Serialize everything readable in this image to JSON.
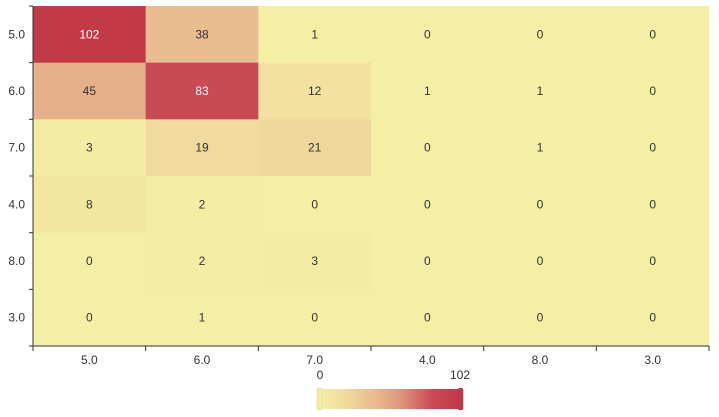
{
  "chart_data": {
    "type": "heatmap",
    "title": "",
    "xlabel": "",
    "ylabel": "",
    "x_categories": [
      "5.0",
      "6.0",
      "7.0",
      "4.0",
      "8.0",
      "3.0"
    ],
    "y_categories": [
      "5.0",
      "6.0",
      "7.0",
      "4.0",
      "8.0",
      "3.0"
    ],
    "values": [
      [
        102,
        38,
        1,
        0,
        0,
        0
      ],
      [
        45,
        83,
        12,
        1,
        1,
        0
      ],
      [
        3,
        19,
        21,
        0,
        1,
        0
      ],
      [
        8,
        2,
        0,
        0,
        0,
        0
      ],
      [
        0,
        2,
        3,
        0,
        0,
        0
      ],
      [
        0,
        1,
        0,
        0,
        0,
        0
      ]
    ],
    "visual_map": {
      "min": 0,
      "max": 102,
      "min_label": "0",
      "max_label": "102",
      "colors": [
        "#f5efa5",
        "#f0d89c",
        "#e9b98e",
        "#dc8f7c",
        "#c84b55",
        "#c23a48"
      ],
      "placement": "bottom-center"
    },
    "grid": true
  }
}
